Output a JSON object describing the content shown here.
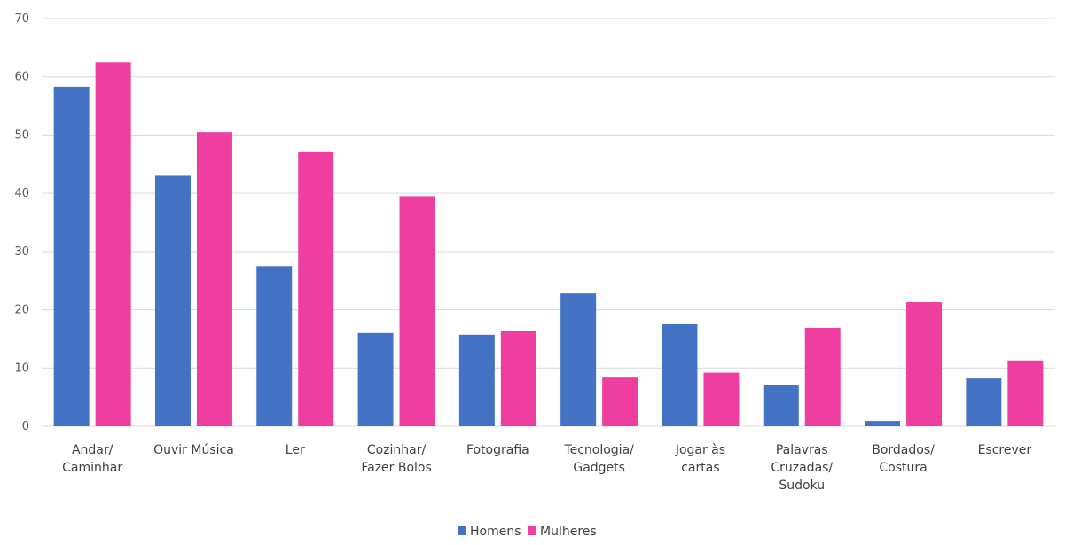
{
  "chart_data": {
    "type": "bar",
    "categories": [
      [
        "Andar/",
        "Caminhar"
      ],
      [
        "Ouvir Música"
      ],
      [
        "Ler"
      ],
      [
        "Cozinhar/",
        "Fazer Bolos"
      ],
      [
        "Fotografia"
      ],
      [
        "Tecnologia/",
        "Gadgets"
      ],
      [
        "Jogar às",
        "cartas"
      ],
      [
        "Palavras",
        "Cruzadas/",
        "Sudoku"
      ],
      [
        "Bordados/",
        "Costura"
      ],
      [
        "Escrever"
      ]
    ],
    "series": [
      {
        "name": "Homens",
        "color": "#4472c4",
        "values": [
          58.3,
          43.0,
          27.5,
          16.0,
          15.7,
          22.8,
          17.5,
          7.0,
          0.9,
          8.2
        ]
      },
      {
        "name": "Mulheres",
        "color": "#ee3fa0",
        "values": [
          62.5,
          50.5,
          47.2,
          39.5,
          16.3,
          8.5,
          9.2,
          16.9,
          21.3,
          11.3
        ]
      }
    ],
    "ylim": [
      0,
      70
    ],
    "yticks": [
      0,
      10,
      20,
      30,
      40,
      50,
      60,
      70
    ],
    "grid": true,
    "legend": "bottom-center"
  }
}
